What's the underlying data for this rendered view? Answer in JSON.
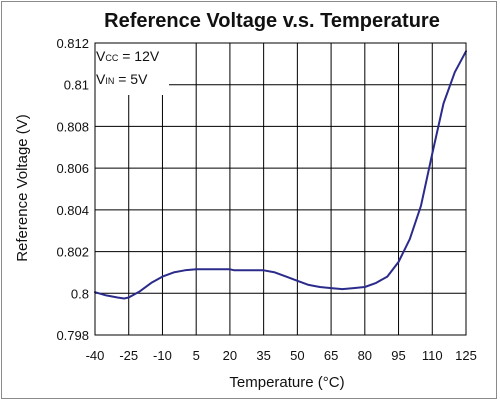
{
  "chart_data": {
    "type": "line",
    "title": "Reference Voltage v.s. Temperature",
    "xlabel": "Temperature (°C)",
    "ylabel": "Reference Voltage (V)",
    "xlim": [
      -40,
      125
    ],
    "ylim": [
      0.798,
      0.812
    ],
    "x_ticks": [
      "-40",
      "-25",
      "-10",
      "5",
      "20",
      "35",
      "50",
      "65",
      "80",
      "95",
      "110",
      "125"
    ],
    "y_ticks": [
      "0.798",
      "0.8",
      "0.802",
      "0.804",
      "0.806",
      "0.808",
      "0.81",
      "0.812"
    ],
    "x_tick_values": [
      -40,
      -25,
      -10,
      5,
      20,
      35,
      50,
      65,
      80,
      95,
      110,
      125
    ],
    "y_tick_values": [
      0.798,
      0.8,
      0.802,
      0.804,
      0.806,
      0.808,
      0.81,
      0.812
    ],
    "grid": true,
    "annotations": [
      {
        "main": "V",
        "sub": "CC",
        "rest": " = 12V"
      },
      {
        "main": "V",
        "sub": "IN",
        "rest": " = 5V"
      }
    ],
    "series": [
      {
        "color": "#2b2b8c",
        "x": [
          -40,
          -35,
          -30,
          -27,
          -25,
          -20,
          -15,
          -10,
          -5,
          0,
          5,
          10,
          15,
          20,
          22,
          25,
          30,
          35,
          40,
          45,
          50,
          55,
          60,
          65,
          70,
          75,
          80,
          85,
          90,
          95,
          100,
          105,
          110,
          115,
          120,
          125
        ],
        "y": [
          0.80005,
          0.7999,
          0.7998,
          0.79975,
          0.7998,
          0.8001,
          0.8005,
          0.8008,
          0.801,
          0.8011,
          0.80115,
          0.80115,
          0.80115,
          0.80115,
          0.8011,
          0.8011,
          0.8011,
          0.8011,
          0.801,
          0.8008,
          0.8006,
          0.8004,
          0.8003,
          0.80025,
          0.8002,
          0.80025,
          0.8003,
          0.8005,
          0.8008,
          0.8015,
          0.8026,
          0.8042,
          0.8067,
          0.8091,
          0.8106,
          0.8116
        ]
      }
    ]
  }
}
